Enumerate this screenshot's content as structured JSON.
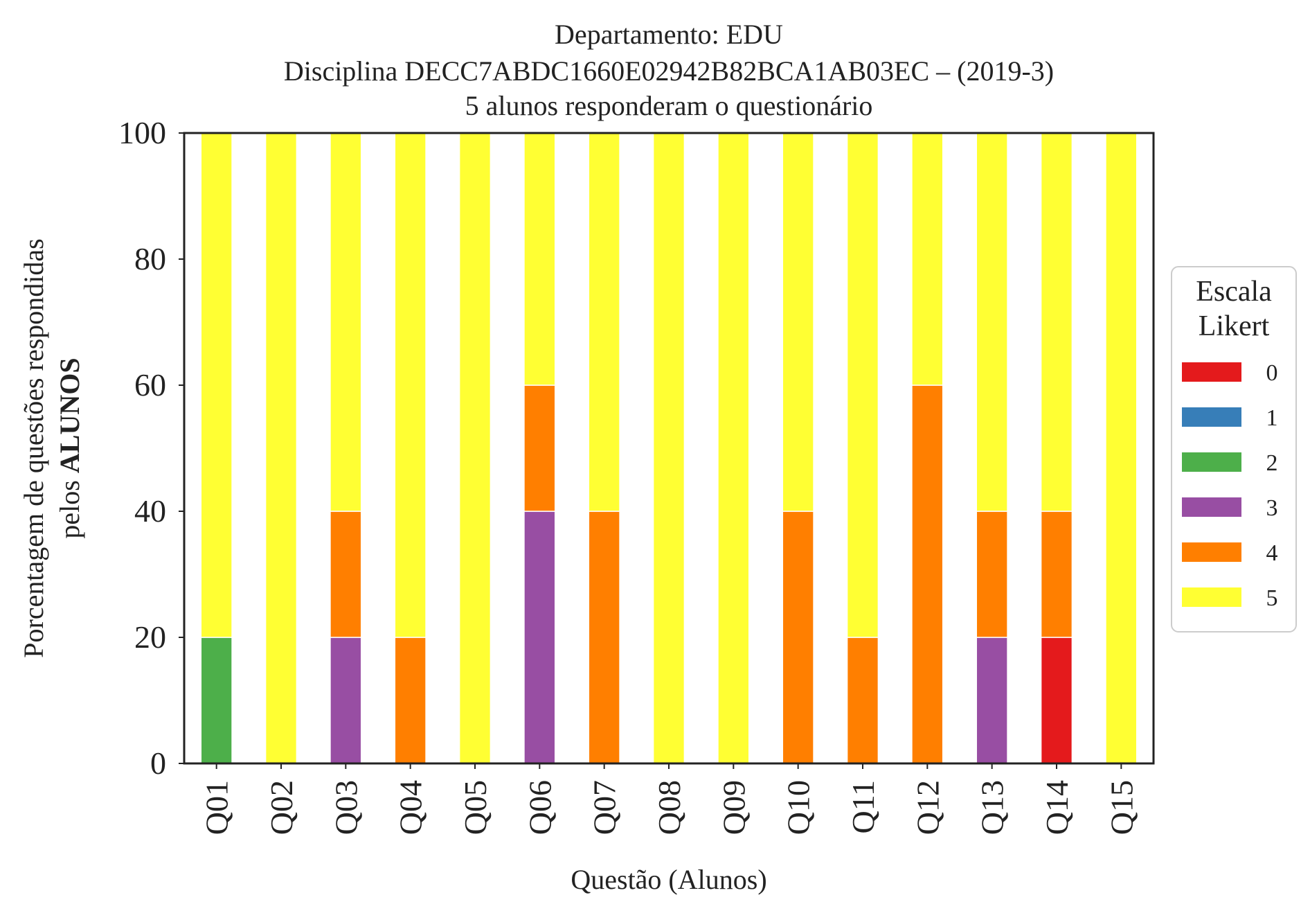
{
  "chart_data": {
    "type": "bar",
    "stacked": true,
    "title_lines": [
      "Departamento: EDU",
      "Disciplina DECC7ABDC1660E02942B82BCA1AB03EC – (2019-3)",
      "5 alunos responderam o questionário"
    ],
    "xlabel": "Questão (Alunos)",
    "ylabel_line1": "Porcentagem de questões respondidas",
    "ylabel_line2_prefix": "pelos ",
    "ylabel_line2_bold": "ALUNOS",
    "ylim": [
      0,
      100
    ],
    "yticks": [
      0,
      20,
      40,
      60,
      80,
      100
    ],
    "grid": false,
    "legend_position": "right",
    "legend_title_lines": [
      "Escala",
      "Likert"
    ],
    "categories": [
      "Q01",
      "Q02",
      "Q03",
      "Q04",
      "Q05",
      "Q06",
      "Q07",
      "Q08",
      "Q09",
      "Q10",
      "Q11",
      "Q12",
      "Q13",
      "Q14",
      "Q15"
    ],
    "series": [
      {
        "name": "0",
        "color": "#e41a1c",
        "values": [
          0,
          0,
          0,
          0,
          0,
          0,
          0,
          0,
          0,
          0,
          0,
          0,
          0,
          20,
          0
        ]
      },
      {
        "name": "1",
        "color": "#377eb8",
        "values": [
          0,
          0,
          0,
          0,
          0,
          0,
          0,
          0,
          0,
          0,
          0,
          0,
          0,
          0,
          0
        ]
      },
      {
        "name": "2",
        "color": "#4daf4a",
        "values": [
          20,
          0,
          0,
          0,
          0,
          0,
          0,
          0,
          0,
          0,
          0,
          0,
          0,
          0,
          0
        ]
      },
      {
        "name": "3",
        "color": "#984ea3",
        "values": [
          0,
          0,
          20,
          0,
          0,
          40,
          0,
          0,
          0,
          0,
          0,
          0,
          20,
          0,
          0
        ]
      },
      {
        "name": "4",
        "color": "#ff7f00",
        "values": [
          0,
          0,
          20,
          20,
          0,
          20,
          40,
          0,
          0,
          40,
          20,
          60,
          20,
          20,
          0
        ]
      },
      {
        "name": "5",
        "color": "#ffff33",
        "values": [
          80,
          100,
          60,
          80,
          100,
          40,
          60,
          100,
          100,
          60,
          80,
          40,
          60,
          60,
          100
        ]
      }
    ]
  }
}
